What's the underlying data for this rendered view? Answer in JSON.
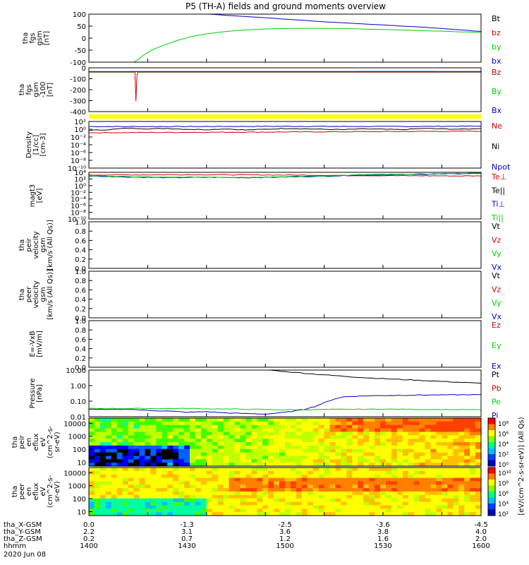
{
  "title": "P5 (TH-A) fields and ground moments overview",
  "date_label": "2020 Jun 08",
  "colors": {
    "black": "#000000",
    "red": "#d40000",
    "green": "#00d000",
    "blue": "#0000d0"
  },
  "chart_data": [
    {
      "type": "line",
      "panel": "fgs",
      "ylabel_lines": [
        "tha",
        "fgs",
        "gsm",
        "[nT]"
      ],
      "ylim": [
        -100,
        100
      ],
      "yticks": [
        "100",
        "50",
        "0",
        "-50",
        "-100"
      ],
      "legend": [
        {
          "name": "Bt",
          "color": "#000000"
        },
        {
          "name": "bz",
          "color": "#d40000"
        },
        {
          "name": "by",
          "color": "#00d000"
        },
        {
          "name": "bx",
          "color": "#0000d0"
        }
      ],
      "series": [
        {
          "name": "bx",
          "color": "#0000d0",
          "x": [
            1455,
            1460,
            1470,
            1480,
            1490,
            1500,
            1510,
            1520,
            1530,
            1540,
            1550,
            1560,
            1570,
            1580,
            1590,
            1600
          ],
          "y": [
            104,
            101,
            95,
            90,
            85,
            79,
            74,
            68,
            64,
            59,
            55,
            50,
            46,
            40,
            34,
            28
          ]
        },
        {
          "name": "by",
          "color": "#00d000",
          "x": [
            1423,
            1425,
            1428,
            1432,
            1438,
            1445,
            1452,
            1460,
            1470,
            1480,
            1490,
            1500,
            1510,
            1520,
            1530,
            1540,
            1550,
            1560,
            1570,
            1580,
            1590,
            1600
          ],
          "y": [
            -102,
            -90,
            -70,
            -50,
            -30,
            -10,
            6,
            18,
            28,
            34,
            38,
            40,
            41,
            41,
            40,
            38,
            36,
            34,
            31,
            29,
            26,
            24
          ]
        }
      ]
    },
    {
      "type": "line",
      "panel": "fgs_hires",
      "ylabel_lines": [
        "tha",
        "fgs",
        "gsm",
        "-100",
        "[nT]"
      ],
      "ylim": [
        -450,
        50
      ],
      "yticks": [
        "0",
        "-100",
        "-200",
        "-300",
        "-400"
      ],
      "legend": [
        {
          "name": "Bz",
          "color": "#d40000"
        },
        {
          "name": "By",
          "color": "#00d000"
        },
        {
          "name": "Bx",
          "color": "#0000d0"
        }
      ],
      "series": [
        {
          "name": "Bz",
          "color": "#d40000",
          "x": [
            1400,
            1423.5,
            1424,
            1424.5,
            1425,
            1600
          ],
          "y": [
            0,
            0,
            -330,
            -40,
            0,
            0
          ]
        },
        {
          "name": "By",
          "color": "#00d000",
          "x": [
            1400,
            1450,
            1500,
            1550,
            1600
          ],
          "y": [
            2,
            4,
            3,
            5,
            4
          ]
        },
        {
          "name": "Bx",
          "color": "#0000d0",
          "x": [
            1400,
            1450,
            1500,
            1550,
            1600
          ],
          "y": [
            6,
            8,
            7,
            9,
            8
          ]
        }
      ]
    },
    {
      "type": "line",
      "panel": "density",
      "log": true,
      "ylabel_lines": [
        "Density",
        "[1/cc]",
        "[cm-3]"
      ],
      "ylim": [
        -10,
        2
      ],
      "yticks": [
        "10²",
        "10⁰",
        "10⁻²",
        "10⁻⁴",
        "10⁻⁶",
        "10⁻⁸",
        "10⁻¹⁰"
      ],
      "legend": [
        {
          "name": "Ne",
          "color": "#d40000"
        },
        {
          "name": "Ni",
          "color": "#000000"
        },
        {
          "name": "Npot",
          "color": "#0000d0"
        }
      ],
      "series": [
        {
          "name": "Npot",
          "color": "#0000d0",
          "x": [
            1400,
            1450,
            1500,
            1550,
            1600
          ],
          "y": [
            0.7,
            0.7,
            0.75,
            0.7,
            0.8
          ]
        },
        {
          "name": "Ni",
          "color": "#000000",
          "x": [
            1400,
            1410,
            1420,
            1430,
            1440,
            1450,
            1460,
            1470,
            1480,
            1490,
            1500,
            1510,
            1520,
            1530,
            1540,
            1550,
            1560,
            1570,
            1580,
            1590,
            1600
          ],
          "y": [
            -0.3,
            -0.1,
            0.3,
            0.1,
            0.2,
            0.0,
            -0.1,
            0.1,
            -0.2,
            0.0,
            0.2,
            0.1,
            0.0,
            -0.1,
            0.1,
            0.0,
            -0.1,
            0.2,
            0.1,
            0.0,
            0.2
          ]
        },
        {
          "name": "Ne",
          "color": "#d40000",
          "x": [
            1400,
            1450,
            1500,
            1550,
            1600
          ],
          "y": [
            -0.9,
            -0.8,
            -0.7,
            -0.6,
            -0.5
          ]
        }
      ]
    },
    {
      "type": "line",
      "panel": "temperature",
      "log": true,
      "ylabel_lines": [
        "magt3",
        "[eV]"
      ],
      "ylim": [
        -10,
        4
      ],
      "yticks": [
        "10⁴",
        "10²",
        "10⁰",
        "10⁻²",
        "10⁻⁴",
        "10⁻⁶",
        "10⁻⁸",
        "10⁻¹⁰"
      ],
      "legend": [
        {
          "name": "Te⊥",
          "color": "#d40000"
        },
        {
          "name": "Te||",
          "color": "#000000"
        },
        {
          "name": "Ti⊥",
          "color": "#0000d0"
        },
        {
          "name": "Ti||",
          "color": "#00d000"
        }
      ],
      "series": [
        {
          "name": "Te⊥",
          "color": "#d40000",
          "x": [
            1400,
            1450,
            1500,
            1550,
            1600
          ],
          "y": [
            3.2,
            3.3,
            3.2,
            3.0,
            2.9
          ]
        },
        {
          "name": "Ti⊥",
          "color": "#0000d0",
          "x": [
            1400,
            1420,
            1440,
            1460,
            1480,
            1500,
            1520,
            1540,
            1560,
            1580,
            1600
          ],
          "y": [
            2.9,
            2.6,
            2.4,
            2.5,
            2.4,
            2.6,
            2.8,
            3.2,
            3.3,
            3.5,
            3.7
          ]
        },
        {
          "name": "Ti||",
          "color": "#00d000",
          "x": [
            1400,
            1420,
            1440,
            1460,
            1480,
            1500,
            1520,
            1540,
            1560,
            1580,
            1600
          ],
          "y": [
            3.0,
            2.7,
            2.5,
            2.6,
            2.5,
            2.7,
            2.9,
            3.3,
            3.4,
            3.6,
            3.8
          ]
        }
      ]
    },
    {
      "type": "line",
      "panel": "peir_velocity",
      "ylabel_lines": [
        "tha",
        "peir",
        "velocity",
        "gsm",
        "[km/s (All Qs)]"
      ],
      "ylim": [
        0,
        1
      ],
      "yticks": [
        "1.0",
        "0.8",
        "0.6",
        "0.4",
        "0.2",
        "0.0"
      ],
      "legend": [
        {
          "name": "Vt",
          "color": "#000000"
        },
        {
          "name": "Vz",
          "color": "#d40000"
        },
        {
          "name": "Vy",
          "color": "#00d000"
        },
        {
          "name": "Vx",
          "color": "#0000d0"
        }
      ],
      "series": []
    },
    {
      "type": "line",
      "panel": "peer_velocity",
      "ylabel_lines": [
        "tha",
        "peer",
        "velocity",
        "gsm",
        "[km/s (All Qs)]"
      ],
      "ylim": [
        0,
        1
      ],
      "yticks": [
        "1.0",
        "0.8",
        "0.6",
        "0.4",
        "0.2",
        "0.0"
      ],
      "legend": [
        {
          "name": "Vt",
          "color": "#000000"
        },
        {
          "name": "Vz",
          "color": "#d40000"
        },
        {
          "name": "Vy",
          "color": "#00d000"
        },
        {
          "name": "Vx",
          "color": "#0000d0"
        }
      ],
      "series": []
    },
    {
      "type": "line",
      "panel": "efield",
      "ylabel_lines": [
        "E=-VxB",
        "[mV/m]"
      ],
      "ylim": [
        0,
        1
      ],
      "yticks": [
        "1.0",
        "0.8",
        "0.6",
        "0.4",
        "0.2",
        "0.0"
      ],
      "legend": [
        {
          "name": "Ez",
          "color": "#d40000"
        },
        {
          "name": "Ey",
          "color": "#00d000"
        },
        {
          "name": "Ex",
          "color": "#0000d0"
        }
      ],
      "series": []
    },
    {
      "type": "line",
      "panel": "pressure",
      "log": true,
      "ylabel_lines": [
        "Pressure",
        "[nPa]"
      ],
      "ylim": [
        -2.2,
        1.5
      ],
      "yticks": [
        "10.00",
        "1.00",
        "0.10",
        "0.01"
      ],
      "legend": [
        {
          "name": "Pt",
          "color": "#000000"
        },
        {
          "name": "Pb",
          "color": "#d40000"
        },
        {
          "name": "Pe",
          "color": "#00d000"
        },
        {
          "name": "Pi",
          "color": "#0000d0"
        }
      ],
      "series": [
        {
          "name": "Pt",
          "color": "#000000",
          "x": [
            1492,
            1500,
            1520,
            1540,
            1560,
            1580,
            1600
          ],
          "y": [
            1.5,
            1.38,
            1.12,
            0.9,
            0.75,
            0.6,
            0.45
          ]
        },
        {
          "name": "Pi",
          "color": "#0000d0",
          "x": [
            1400,
            1410,
            1420,
            1430,
            1440,
            1450,
            1460,
            1470,
            1480,
            1490,
            1500,
            1505,
            1510,
            1515,
            1520,
            1525,
            1530,
            1540,
            1550,
            1560,
            1570,
            1580,
            1590,
            1600
          ],
          "y": [
            -1.6,
            -1.65,
            -1.6,
            -1.7,
            -1.75,
            -1.85,
            -1.8,
            -1.9,
            -1.95,
            -2.0,
            -1.85,
            -1.75,
            -1.6,
            -1.4,
            -1.1,
            -0.8,
            -0.62,
            -0.55,
            -0.52,
            -0.5,
            -0.48,
            -0.47,
            -0.46,
            -0.45
          ]
        },
        {
          "name": "Pe",
          "color": "#00d000",
          "x": [
            1400,
            1450,
            1500,
            1550,
            1600
          ],
          "y": [
            -1.55,
            -1.55,
            -1.65,
            -1.6,
            -1.65
          ]
        }
      ]
    },
    {
      "type": "heatmap",
      "panel": "peir_spectrogram",
      "ylabel_lines": [
        "tha",
        "peir",
        "en",
        "eflux",
        "eV",
        "(cm^2-s-",
        "sr-eV)"
      ],
      "ylim": [
        5,
        25000
      ],
      "yticks": [
        "10000",
        "1000",
        "100",
        "10"
      ],
      "colorbar_label": "[eV/(cm^2-s-sr-eV)] (All Qs)",
      "colorbar_ticks": [
        "10⁸",
        "10⁶",
        "10⁴",
        "10²",
        "10⁰"
      ]
    },
    {
      "type": "heatmap",
      "panel": "peer_spectrogram",
      "ylabel_lines": [
        "tha",
        "peer",
        "en",
        "eflux",
        "eV",
        "(cm^2-s-",
        "sr-eV)"
      ],
      "ylim": [
        5,
        25000
      ],
      "yticks": [
        "10000",
        "1000",
        "100",
        "10"
      ],
      "colorbar_label": "[eV/(cm^2-s-sr-eV)] (All Qs)",
      "colorbar_ticks": [
        "10¹⁰",
        "10⁸",
        "10⁶",
        "10⁴",
        "10²"
      ]
    }
  ],
  "xaxis": {
    "rows": [
      {
        "label": "tha_X-GSM",
        "values": [
          "0.0",
          "-1.3",
          "-2.5",
          "-3.6",
          "-4.5"
        ]
      },
      {
        "label": "tha_Y-GSM",
        "values": [
          "2.2",
          "3.1",
          "3.6",
          "3.8",
          "4.0"
        ]
      },
      {
        "label": "tha_Z-GSM",
        "values": [
          "0.2",
          "0.7",
          "1.2",
          "1.6",
          "2.0"
        ]
      },
      {
        "label": "hhmm",
        "values": [
          "1400",
          "1430",
          "1500",
          "1530",
          "1600"
        ]
      }
    ]
  }
}
